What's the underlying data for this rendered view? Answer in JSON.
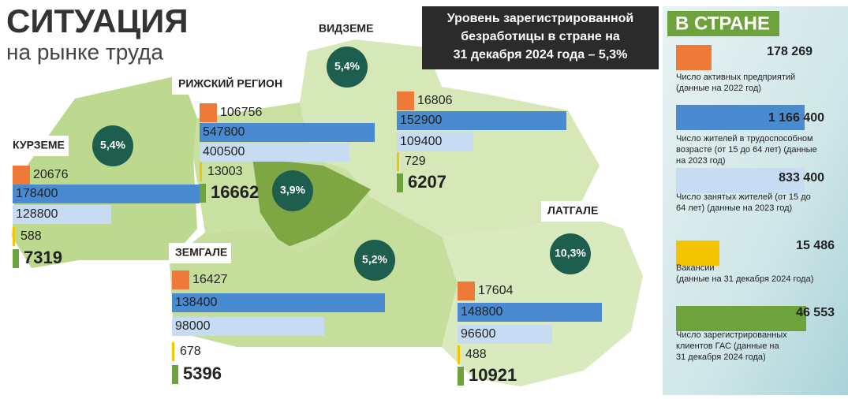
{
  "header": {
    "title": "СИТУАЦИЯ",
    "subtitle": "на рынке труда"
  },
  "notice": [
    "Уровень зарегистрированной",
    "безработицы в стране на",
    "31 декабря 2024 года – 5,3%"
  ],
  "regions": [
    {
      "name": "КУРЗЕМЕ",
      "rate": "5,4%",
      "values": [
        20676,
        178400,
        128800,
        588,
        7319
      ]
    },
    {
      "name": "РИЖСКИЙ РЕГИОН",
      "rate": "3,9%",
      "values": [
        106756,
        547800,
        400500,
        13003,
        16662
      ]
    },
    {
      "name": "ВИДЗЕМЕ",
      "rate": "5,4%",
      "values": [
        16806,
        152900,
        109400,
        729,
        6207
      ]
    },
    {
      "name": "ЗЕМГАЛЕ",
      "rate": "5,2%",
      "values": [
        16427,
        138400,
        98000,
        678,
        5396
      ]
    },
    {
      "name": "ЛАТГАЛЕ",
      "rate": "10,3%",
      "values": [
        17604,
        148800,
        96600,
        488,
        10921
      ]
    }
  ],
  "country": {
    "title": "В СТРАНЕ",
    "items": [
      {
        "value": "178 269",
        "label": [
          "Число активных предприятий",
          "(данные на 2022 год)"
        ]
      },
      {
        "value": "1 166 400",
        "label": [
          "Число жителей в трудоспособном",
          "возрасте (от 15 до 64 лет) (данные",
          "на 2023 год)"
        ]
      },
      {
        "value": "833 400",
        "label": [
          "Число занятых жителей (от 15 до",
          "64 лет) (данные на 2023 год)"
        ]
      },
      {
        "value": "15 486",
        "label": [
          "Вакансии",
          "(данные на 31 декабря 2024 года)"
        ]
      },
      {
        "value": "46 553",
        "label": [
          "Число зарегистрированных",
          "клиентов ГАС (данные на",
          "31 декабря 2024 года)"
        ]
      }
    ]
  }
}
